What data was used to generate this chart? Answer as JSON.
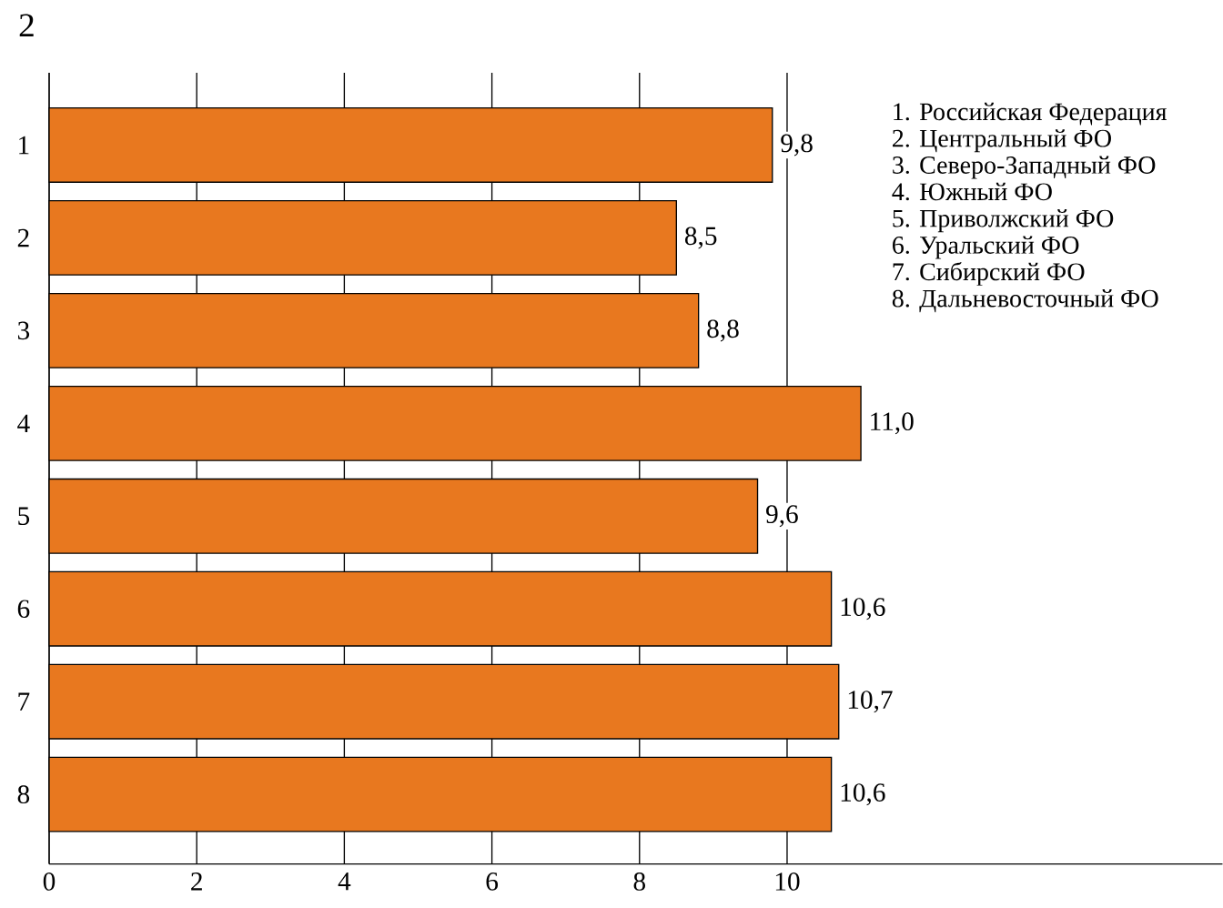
{
  "chart_data": {
    "type": "bar",
    "orientation": "horizontal",
    "title": "2",
    "categories": [
      "1",
      "2",
      "3",
      "4",
      "5",
      "6",
      "7",
      "8"
    ],
    "values": [
      9.8,
      8.5,
      8.8,
      11.0,
      9.6,
      10.6,
      10.7,
      10.6
    ],
    "value_labels": [
      "9,8",
      "8,5",
      "8,8",
      "11,0",
      "9,6",
      "10,6",
      "10,7",
      "10,6"
    ],
    "color": "#e8781f",
    "xlim": [
      0,
      15.9
    ],
    "xticks": [
      0,
      2,
      4,
      6,
      8,
      10
    ],
    "grid": "x",
    "annotations": [
      "1. Российская Федерация",
      "2.  Центральный ФО",
      "3.  Северо-Западный ФО",
      "4.  Южный ФО",
      "5.  Приволжский ФО",
      "6.  Уральский ФО",
      "7.  Сибирский ФО",
      "8.  Дальневосточный ФО"
    ]
  }
}
